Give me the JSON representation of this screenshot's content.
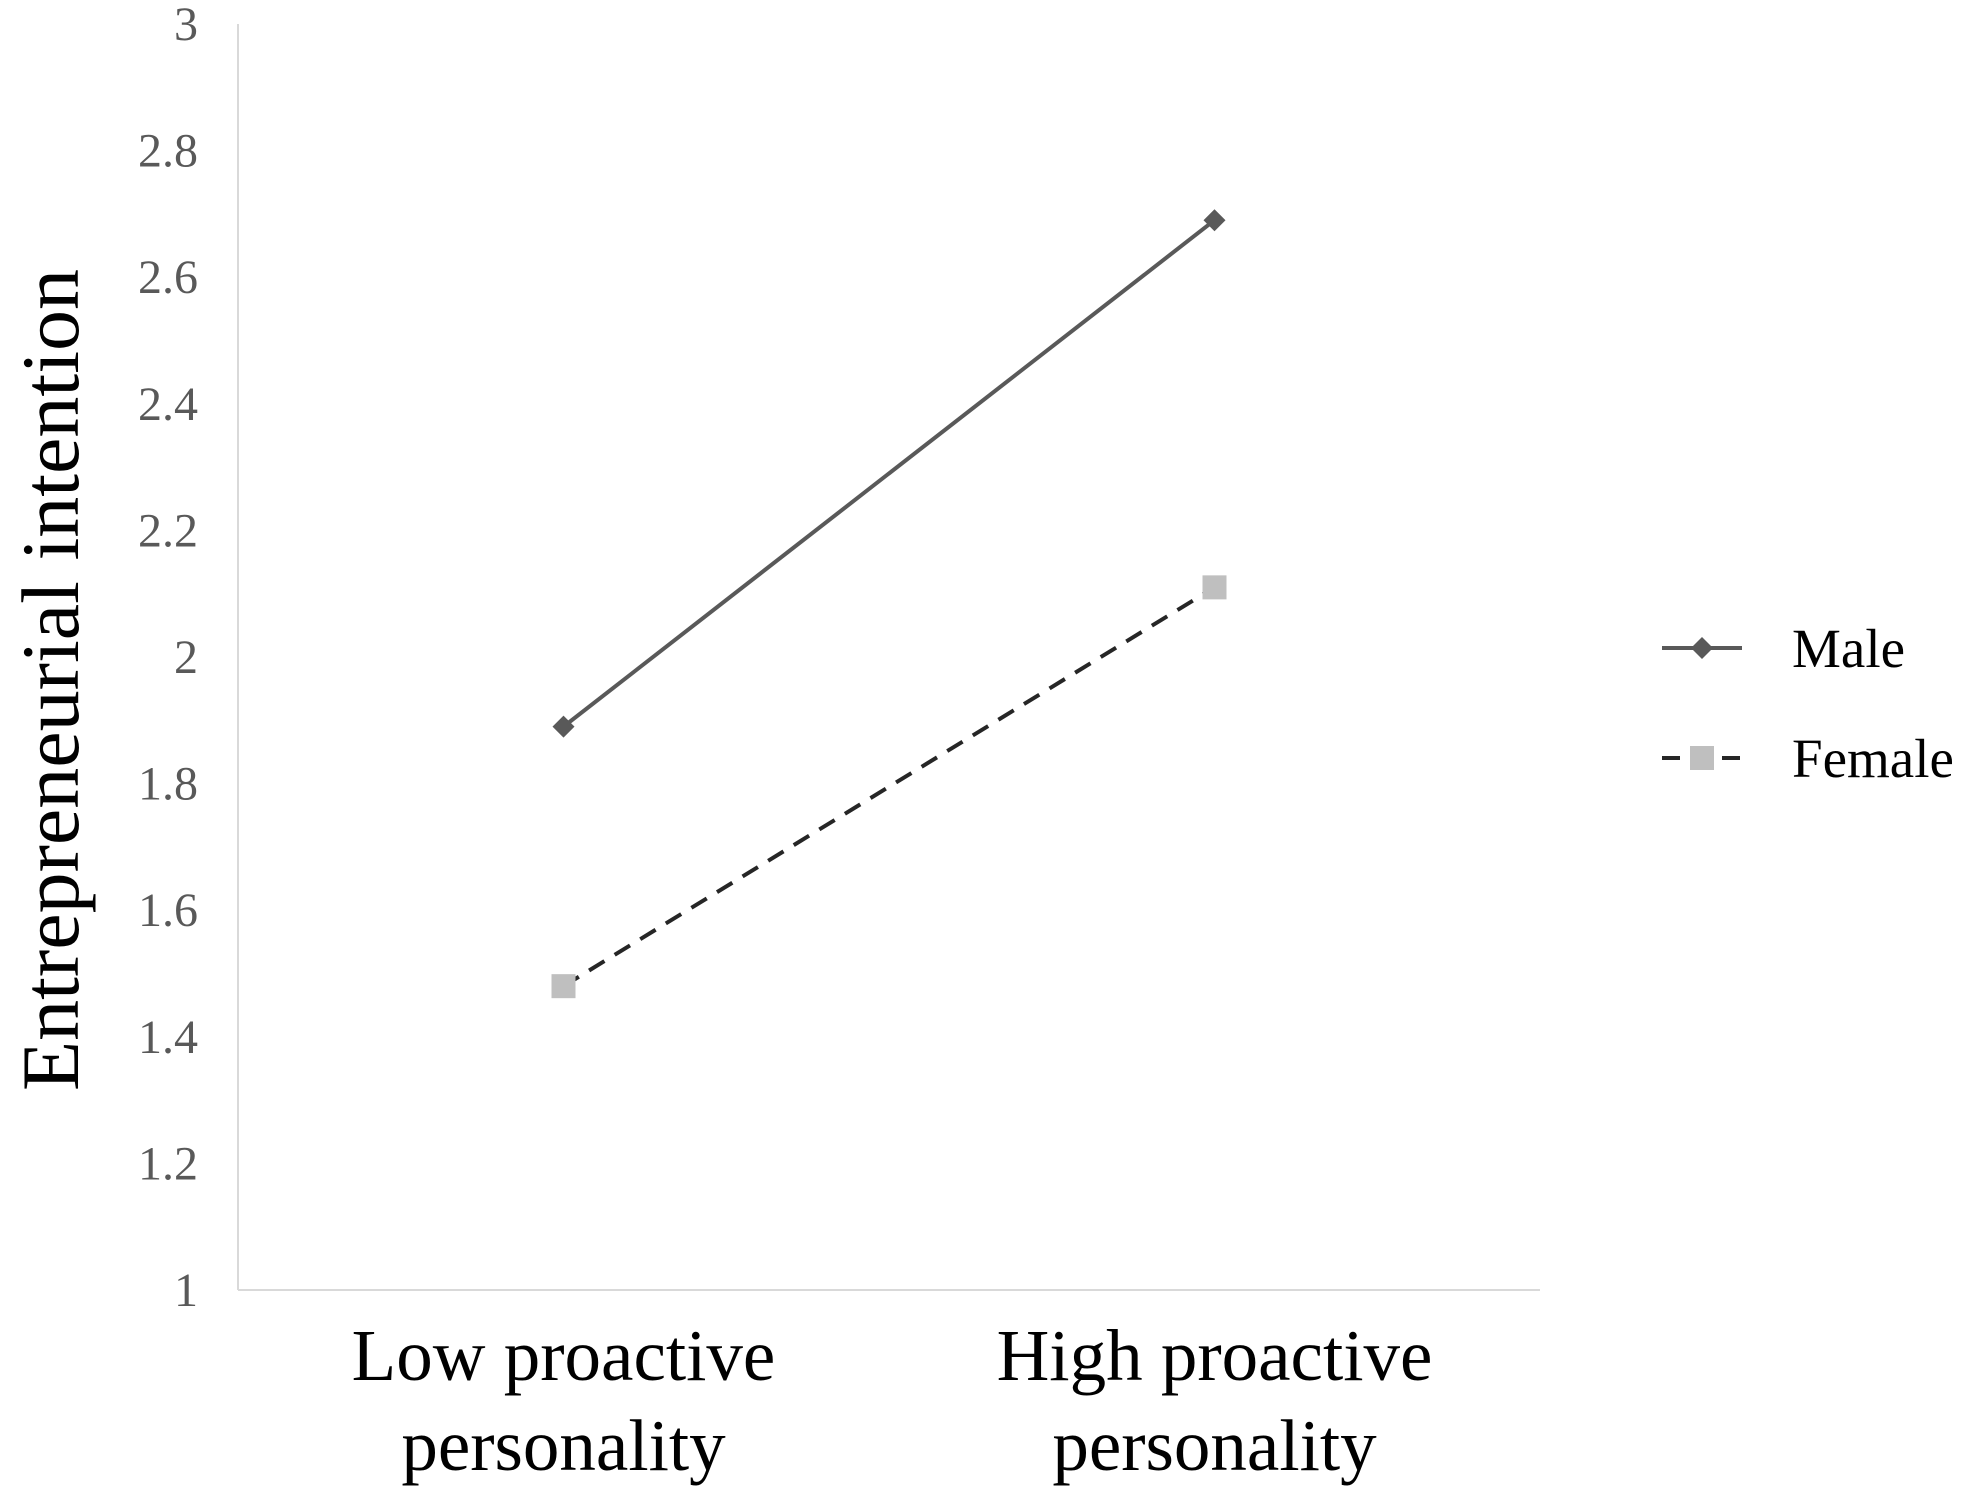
{
  "chart_data": {
    "type": "line",
    "categories": [
      [
        "Low proactive",
        "personality"
      ],
      [
        "High proactive",
        "personality"
      ]
    ],
    "series": [
      {
        "name": "Male",
        "values": [
          1.89,
          2.69
        ],
        "color": "#595959",
        "line_style": "solid",
        "marker": "diamond"
      },
      {
        "name": "Female",
        "values": [
          1.48,
          2.11
        ],
        "color": "#bfbfbf",
        "line_color": "#262626",
        "line_style": "dashed",
        "marker": "square"
      }
    ],
    "title": "",
    "xlabel": "",
    "ylabel": "Entrepreneurial intention",
    "ylim": [
      1,
      3
    ],
    "yticks": [
      "1",
      "1.2",
      "1.4",
      "1.6",
      "1.8",
      "2",
      "2.2",
      "2.4",
      "2.6",
      "2.8",
      "3"
    ],
    "grid": false,
    "legend_position": "right"
  }
}
